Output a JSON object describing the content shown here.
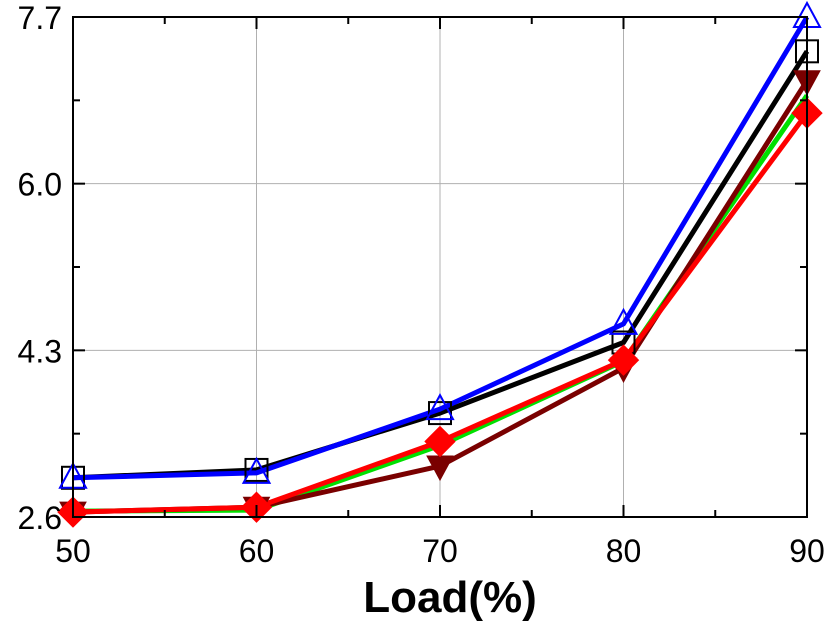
{
  "chart_data": {
    "type": "line",
    "title": "",
    "xlabel": "Load(%)",
    "ylabel": "",
    "x": [
      50,
      60,
      70,
      80,
      90
    ],
    "xticks": [
      "50",
      "60",
      "70",
      "80",
      "90"
    ],
    "yticks": [
      "2.6",
      "4.3",
      "6.0",
      "7.7"
    ],
    "xlim": [
      50,
      90
    ],
    "ylim": [
      2.6,
      7.7
    ],
    "grid": true,
    "series": [
      {
        "color": "#00e000",
        "marker": "none",
        "values": [
          2.66,
          2.67,
          3.33,
          4.19,
          6.9
        ]
      },
      {
        "color": "#000000",
        "marker": "square-open",
        "values": [
          3.0,
          3.08,
          3.66,
          4.38,
          7.35
        ]
      },
      {
        "color": "#0000ff",
        "marker": "triangle-up-open",
        "values": [
          3.0,
          3.05,
          3.7,
          4.57,
          7.7
        ]
      },
      {
        "color": "#7a0000",
        "marker": "triangle-down-filled",
        "values": [
          2.65,
          2.7,
          3.12,
          4.12,
          7.05
        ]
      },
      {
        "color": "#ff0000",
        "marker": "diamond-filled",
        "values": [
          2.65,
          2.7,
          3.37,
          4.2,
          6.72
        ]
      }
    ]
  }
}
